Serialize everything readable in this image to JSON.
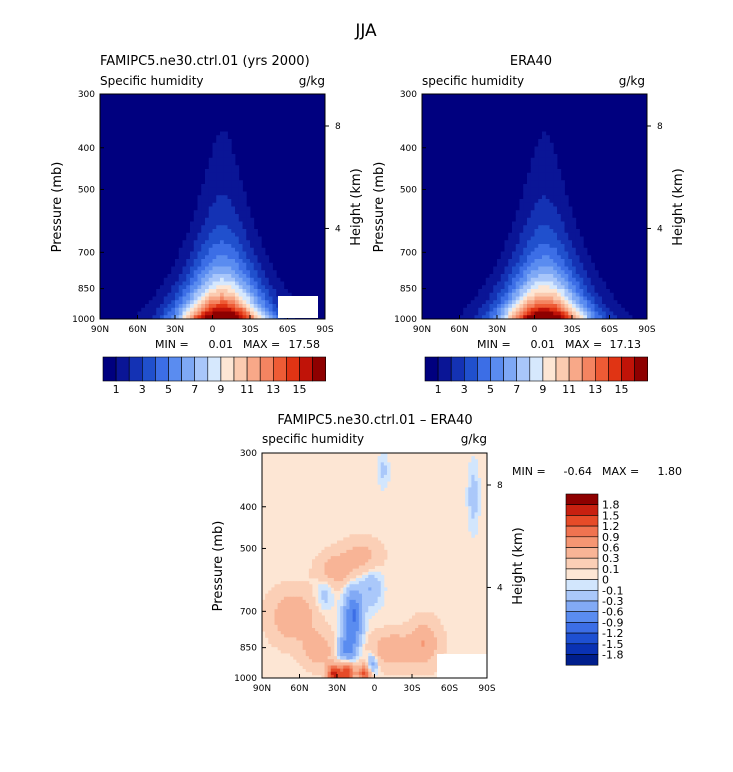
{
  "figure_title": "JJA",
  "colors": {
    "lev_abs": [
      "#00007f",
      "#0a1596",
      "#1432b4",
      "#2050cd",
      "#3c6ee6",
      "#5a8cf0",
      "#7ea8f5",
      "#a8c6fa",
      "#d6e8fd",
      "#fde6d4",
      "#fbcbb0",
      "#f8a888",
      "#f48461",
      "#ee5b35",
      "#e03414",
      "#c01308",
      "#8e0000"
    ],
    "lev_diff": [
      "#001e8c",
      "#0a32b4",
      "#1e50d2",
      "#3c6ee6",
      "#5a8cf0",
      "#82aaf5",
      "#aac8fa",
      "#d2e6fd",
      "#fde6d4",
      "#fbcfb6",
      "#f8b496",
      "#f59673",
      "#f07350",
      "#e64b28",
      "#c82010",
      "#8e0000"
    ]
  },
  "chart_data": [
    {
      "type": "heatmap",
      "title": "FAMIPC5.ne30.ctrl.01 (yrs 2000)",
      "subtitle_left": "Specific humidity",
      "subtitle_right": "g/kg",
      "ylabel": "Pressure (mb)",
      "ylabel_right": "Height (km)",
      "x_ticks": [
        "90N",
        "60N",
        "30N",
        "0",
        "30S",
        "60S",
        "90S"
      ],
      "y_ticks": [
        "300",
        "400",
        "500",
        "700",
        "850",
        "1000"
      ],
      "y_ticks_right": [
        "8",
        "4"
      ],
      "min_label": "MIN =",
      "min_value": "0.01",
      "max_label": "MAX =",
      "max_value": "17.58",
      "peak_lat": -8,
      "peak_value": 17.58,
      "colorbar_labels": [
        "1",
        "3",
        "5",
        "7",
        "9",
        "11",
        "13",
        "15"
      ]
    },
    {
      "type": "heatmap",
      "title": "ERA40",
      "subtitle_left": "specific humidity",
      "subtitle_right": "g/kg",
      "ylabel": "Pressure (mb)",
      "ylabel_right": "Height (km)",
      "x_ticks": [
        "90N",
        "60N",
        "30N",
        "0",
        "30S",
        "60S",
        "90S"
      ],
      "y_ticks": [
        "300",
        "400",
        "500",
        "700",
        "850",
        "1000"
      ],
      "y_ticks_right": [
        "8",
        "4"
      ],
      "min_label": "MIN =",
      "min_value": "0.01",
      "max_label": "MAX =",
      "max_value": "17.13",
      "peak_lat": -8,
      "peak_value": 17.13,
      "colorbar_labels": [
        "1",
        "3",
        "5",
        "7",
        "9",
        "11",
        "13",
        "15"
      ]
    },
    {
      "type": "heatmap",
      "title": "FAMIPC5.ne30.ctrl.01 – ERA40",
      "subtitle_left": "specific humidity",
      "subtitle_right": "g/kg",
      "ylabel": "Pressure (mb)",
      "ylabel_right": "Height (km)",
      "x_ticks": [
        "90N",
        "60N",
        "30N",
        "0",
        "30S",
        "60S",
        "90S"
      ],
      "y_ticks": [
        "300",
        "400",
        "500",
        "700",
        "850",
        "1000"
      ],
      "y_ticks_right": [
        "8",
        "4"
      ],
      "min_label": "MIN =",
      "min_value": "-0.64",
      "max_label": "MAX =",
      "max_value": "1.80",
      "colorbar_labels": [
        "1.8",
        "1.5",
        "1.2",
        "0.9",
        "0.6",
        "0.3",
        "0.1",
        "0",
        "-0.1",
        "-0.3",
        "-0.6",
        "-0.9",
        "-1.2",
        "-1.5",
        "-1.8"
      ]
    }
  ]
}
